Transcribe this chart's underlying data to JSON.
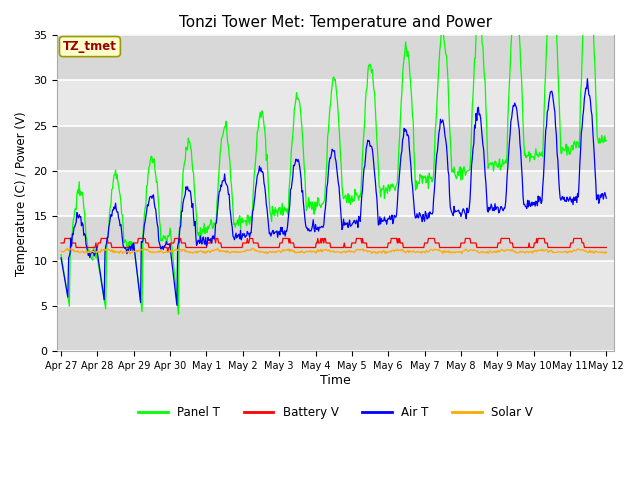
{
  "title": "Tonzi Tower Met: Temperature and Power",
  "xlabel": "Time",
  "ylabel": "Temperature (C) / Power (V)",
  "ylim": [
    0,
    35
  ],
  "background_color": "#ffffff",
  "plot_bg_color": "#e8e8e8",
  "grid_color": "#ffffff",
  "legend_label": "TZ_tmet",
  "legend_box_color": "#ffffcc",
  "legend_box_edge": "#999900",
  "series": {
    "panel_t": {
      "color": "#00ff00",
      "label": "Panel T"
    },
    "battery_v": {
      "color": "#ff0000",
      "label": "Battery V"
    },
    "air_t": {
      "color": "#0000ff",
      "label": "Air T"
    },
    "solar_v": {
      "color": "#ffaa00",
      "label": "Solar V"
    }
  },
  "xtick_labels": [
    "Apr 27",
    "Apr 28",
    "Apr 29",
    "Apr 30",
    "May 1",
    "May 2",
    "May 3",
    "May 4",
    "May 5",
    "May 6",
    "May 7",
    "May 8",
    "May 9",
    "May 10",
    "May 11",
    "May 12"
  ],
  "ytick_vals": [
    0,
    5,
    10,
    15,
    20,
    25,
    30,
    35
  ]
}
